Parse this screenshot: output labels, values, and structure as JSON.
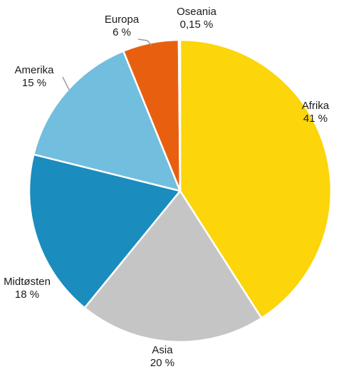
{
  "chart_data": {
    "type": "pie",
    "title": "",
    "slices": [
      {
        "name": "Afrika",
        "value": 41,
        "value_label": "41 %",
        "color": "#FCD50A"
      },
      {
        "name": "Asia",
        "value": 20,
        "value_label": "20 %",
        "color": "#C6C5C5"
      },
      {
        "name": "Midtøsten",
        "value": 18,
        "value_label": "18 %",
        "color": "#1B8CBE"
      },
      {
        "name": "Amerika",
        "value": 15,
        "value_label": "15 %",
        "color": "#72BEDE"
      },
      {
        "name": "Europa",
        "value": 6,
        "value_label": "6 %",
        "color": "#E8600F"
      },
      {
        "name": "Oseania",
        "value": 0.15,
        "value_label": "0,15 %",
        "color": "#F0D030"
      }
    ],
    "start": "12 o'clock",
    "direction": "clockwise",
    "leader_line_color": "#9a9a9a"
  }
}
